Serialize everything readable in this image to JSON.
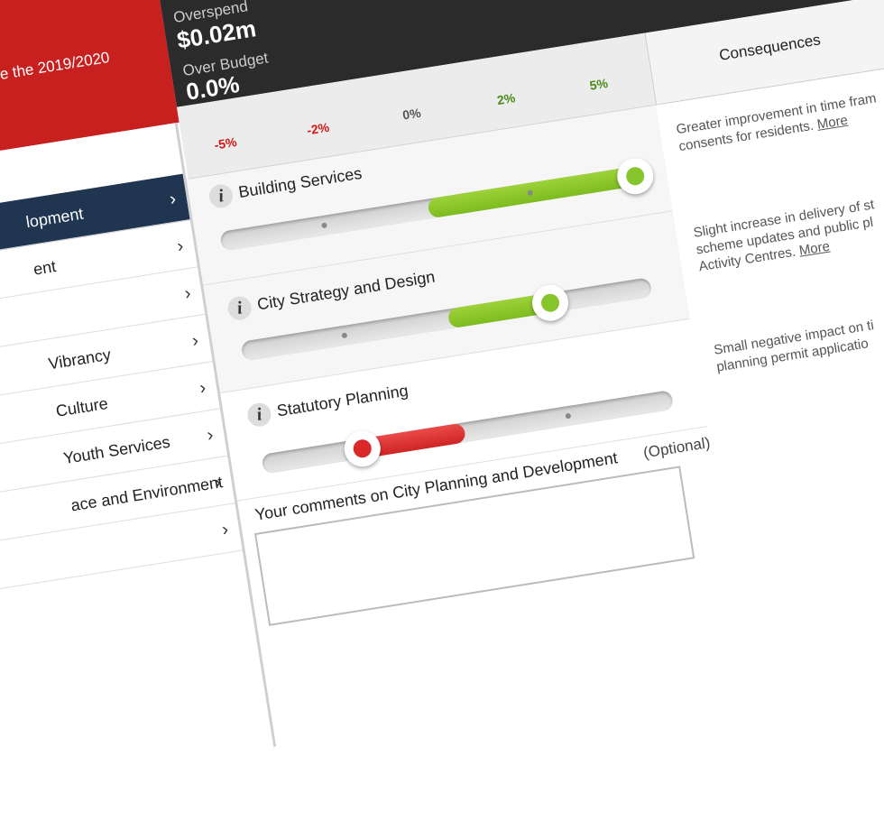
{
  "header": {
    "intro": "e the 2019/2020",
    "overspend_label": "Overspend",
    "overspend_value": "$0.02m",
    "budget_label": "Over Budget",
    "budget_value": "0.0%"
  },
  "sidebar": {
    "items": [
      "lopment",
      "ent",
      "Vibrancy",
      "Culture",
      "Youth Services",
      "ace and Environment"
    ]
  },
  "scale": [
    "-5%",
    "-2%",
    "0%",
    "2%",
    "5%"
  ],
  "consequences": {
    "title": "Consequences",
    "items": [
      {
        "lines": [
          "Greater improvement in time fram",
          "consents for residents."
        ],
        "link": "More"
      },
      {
        "lines": [
          "Slight increase in delivery of st",
          "scheme updates and public pl",
          "Activity Centres."
        ],
        "link": "More"
      },
      {
        "lines": [
          "Small negative impact on ti",
          "planning permit applicatio"
        ]
      }
    ]
  },
  "services": {
    "info_icon": "i",
    "items": [
      "Building Services",
      "City Strategy and Design",
      "Statutory Planning"
    ]
  },
  "comments": {
    "label": "Your comments on City Planning and Development",
    "optional": "(Optional)"
  }
}
